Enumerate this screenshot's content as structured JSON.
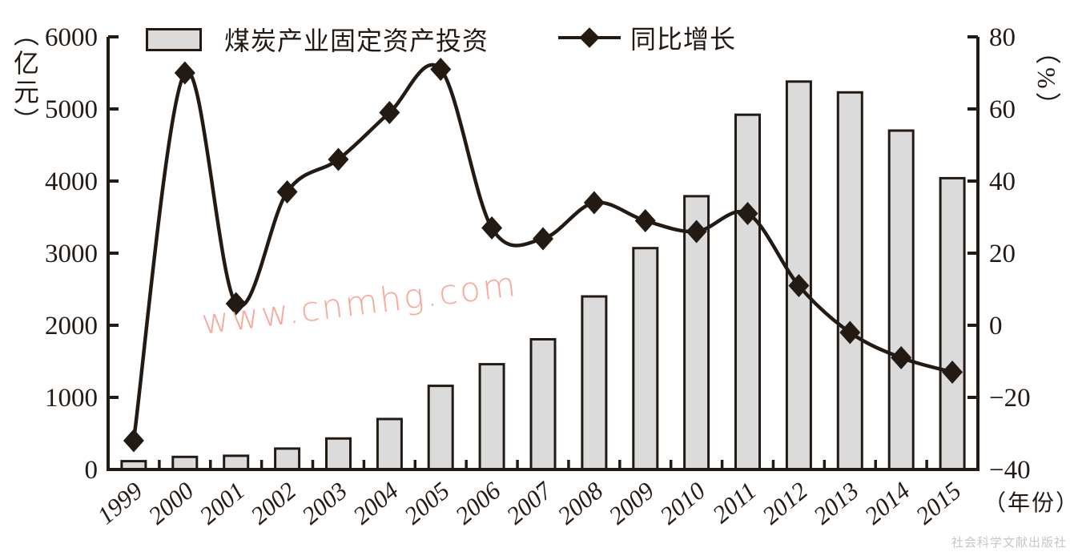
{
  "chart_data": {
    "type": "combo-bar-line",
    "categories": [
      "1999",
      "2000",
      "2001",
      "2002",
      "2003",
      "2004",
      "2005",
      "2006",
      "2007",
      "2008",
      "2009",
      "2010",
      "2011",
      "2012",
      "2013",
      "2014",
      "2015"
    ],
    "series": [
      {
        "name": "煤炭产业固定资产投资",
        "type": "bar",
        "unit": "亿元",
        "values": [
          115,
          175,
          190,
          290,
          430,
          700,
          1160,
          1460,
          1805,
          2400,
          3070,
          3790,
          4920,
          5380,
          5230,
          4700,
          4040
        ]
      },
      {
        "name": "同比增长",
        "type": "line",
        "unit": "%",
        "values": [
          -32,
          70,
          6,
          37,
          46,
          59,
          71,
          27,
          24,
          34,
          29,
          26,
          31,
          11,
          -2,
          -9,
          -13
        ]
      }
    ],
    "left_axis": {
      "title": "（亿元）",
      "min": 0,
      "max": 6000,
      "ticks": [
        0,
        1000,
        2000,
        3000,
        4000,
        5000,
        6000
      ],
      "tick_labels": [
        "0",
        "1000",
        "2000",
        "3000",
        "4000",
        "5000",
        "6000"
      ]
    },
    "right_axis": {
      "title": "（%）",
      "min": -40,
      "max": 80,
      "ticks": [
        -40,
        -20,
        0,
        20,
        40,
        60,
        80
      ],
      "tick_labels": [
        "−40",
        "−20",
        "0",
        "20",
        "40",
        "60",
        "80"
      ]
    },
    "x_axis": {
      "title": "（年份）"
    },
    "legend_position": "top",
    "grid": false
  },
  "legend": {
    "bar_label": "煤炭产业固定资产投资",
    "line_label": "同比增长"
  },
  "watermarks": {
    "site": "www.cnmhg.com",
    "publisher": "社会科学文献出版社"
  },
  "colors": {
    "ink": "#231a13",
    "bar_fill": "#dbdbdb",
    "watermark_pink": "#f8a89a",
    "watermark_gray": "#ccc6c2"
  }
}
